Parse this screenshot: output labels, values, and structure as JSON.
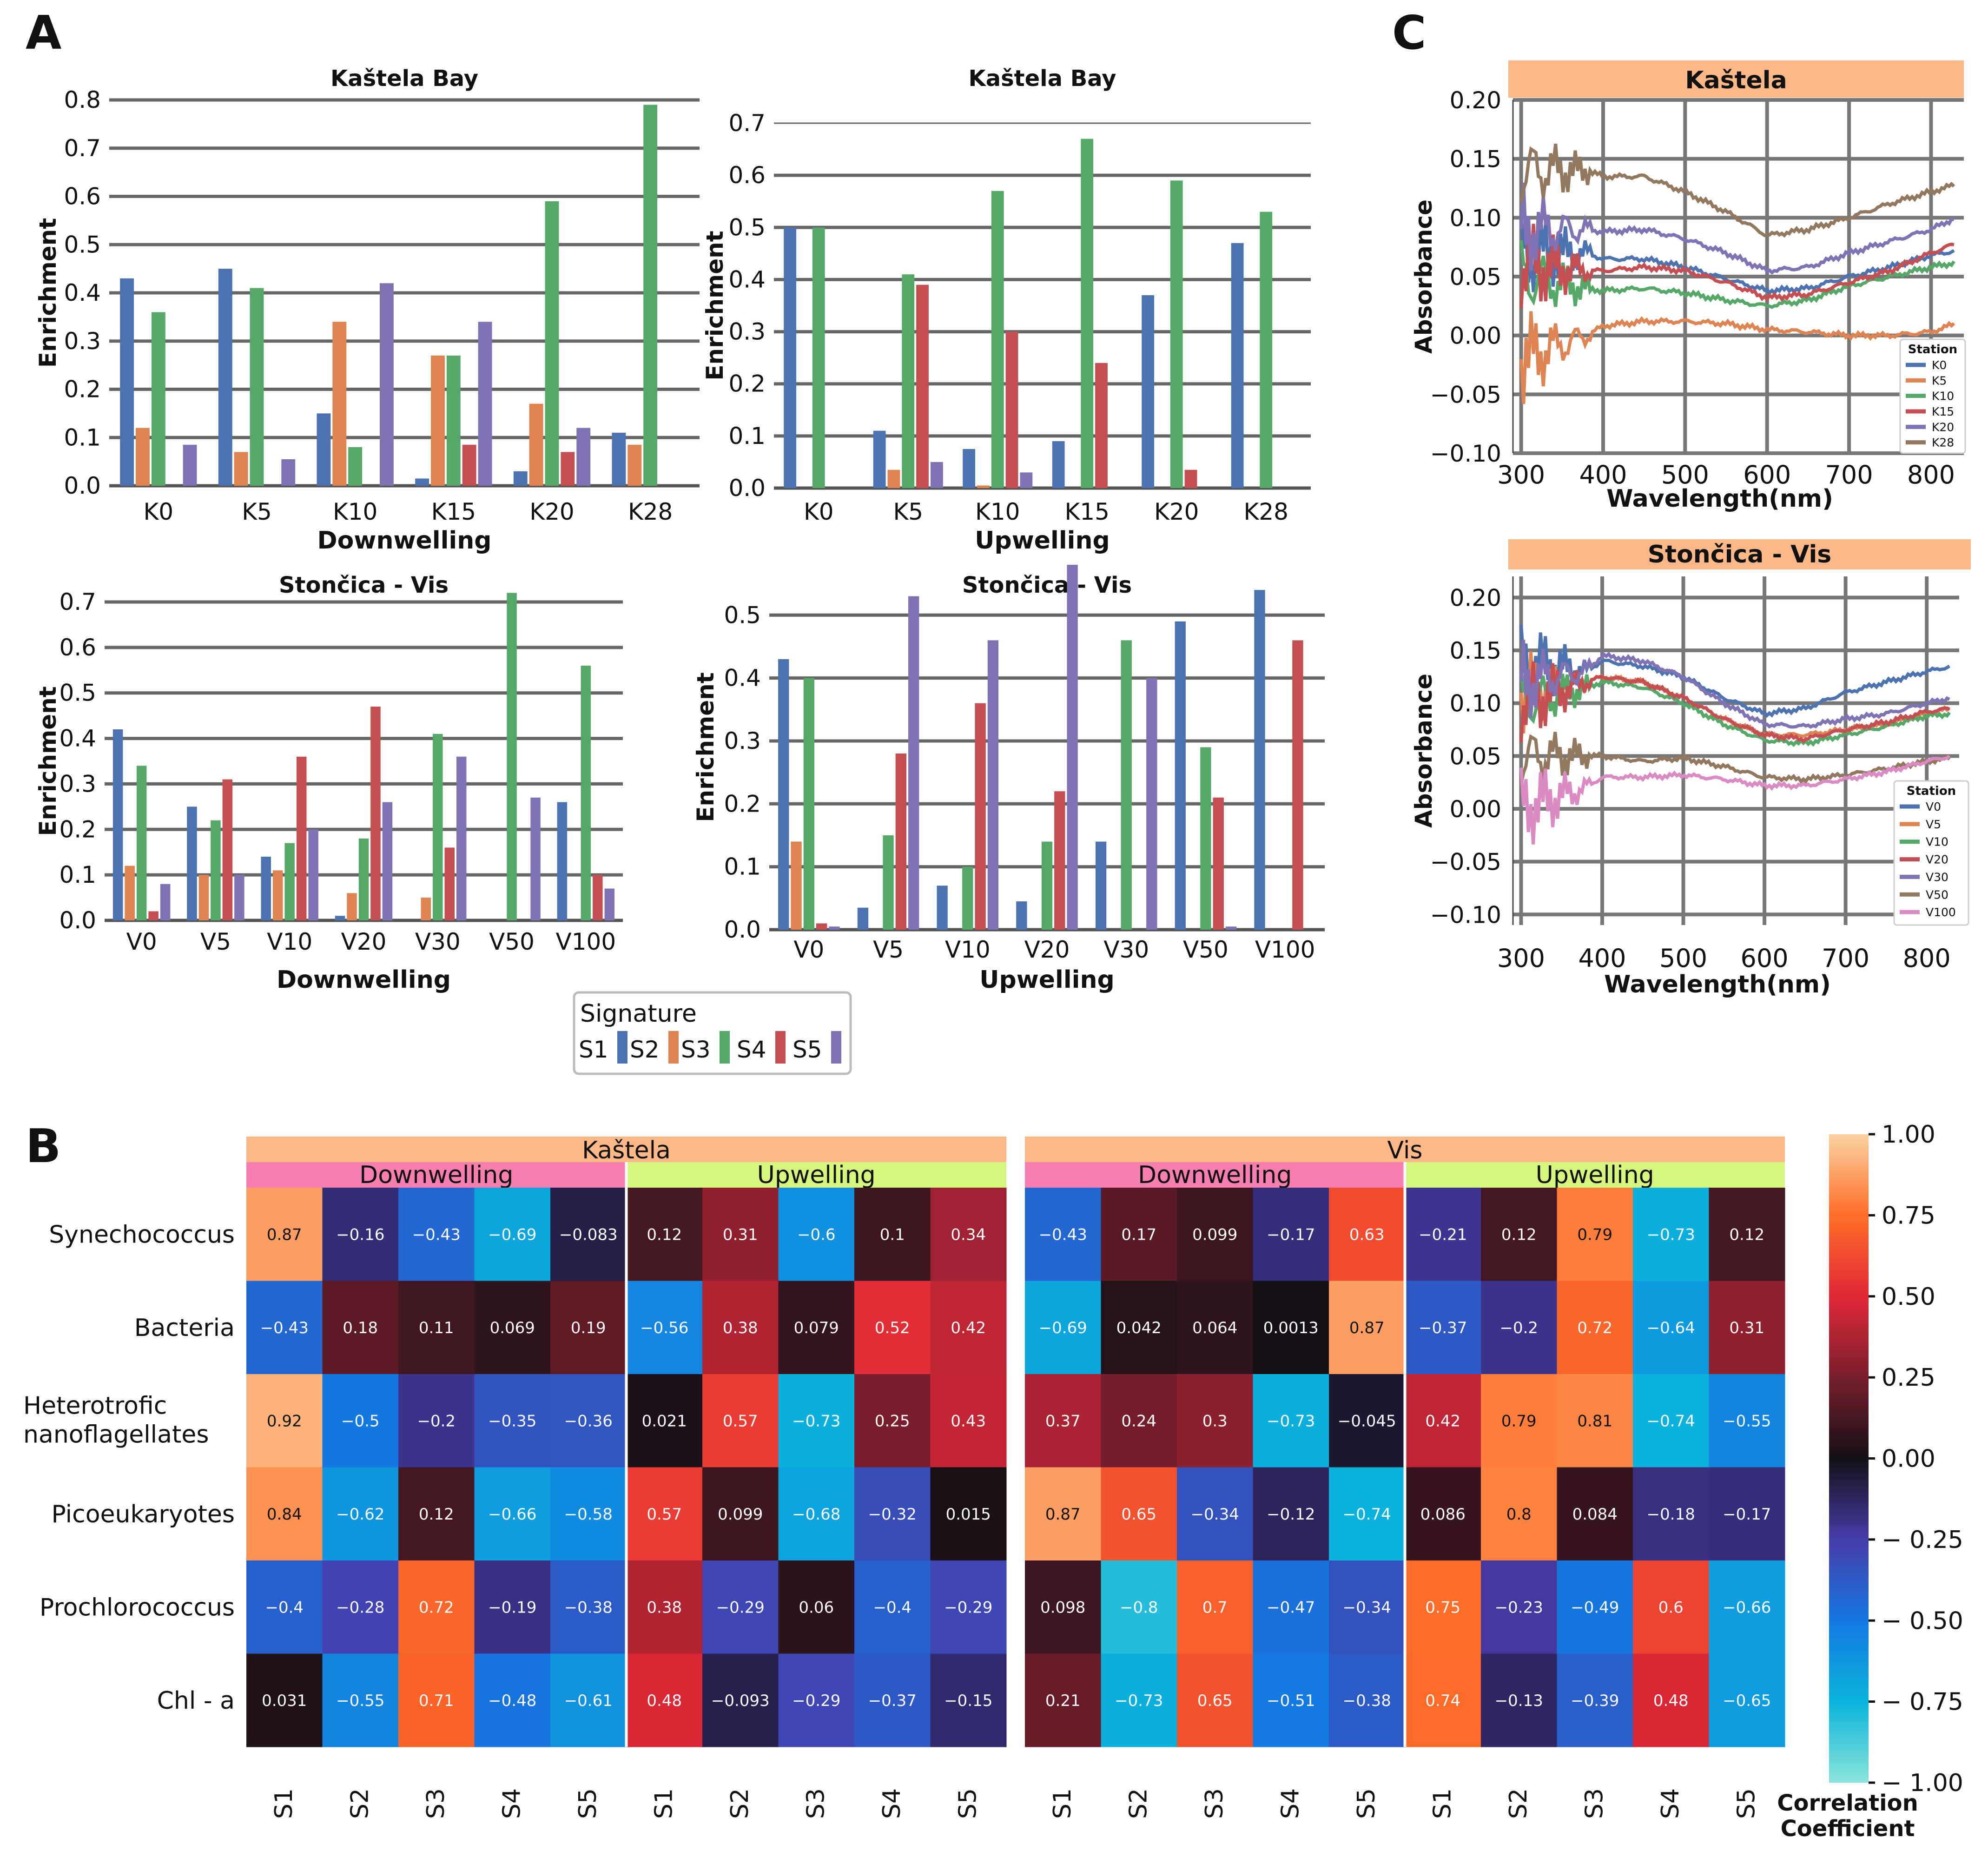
{
  "panel_labels": {
    "a": "A",
    "b": "B",
    "c": "C"
  },
  "signature_legend": {
    "title": "Signature",
    "items": [
      {
        "label": "S1",
        "color": "#4c72b0"
      },
      {
        "label": "S2",
        "color": "#dd8452"
      },
      {
        "label": "S3",
        "color": "#55a868"
      },
      {
        "label": "S4",
        "color": "#c44e52"
      },
      {
        "label": "S5",
        "color": "#8172b3"
      }
    ]
  },
  "chart_data": [
    {
      "type": "bar",
      "panel": "A",
      "title": "Kaštela Bay",
      "xlabel": "Downwelling",
      "ylabel": "Enrichment",
      "ylim": [
        0,
        0.8
      ],
      "yticks": [
        "0.0",
        "0.1",
        "0.2",
        "0.3",
        "0.4",
        "0.5",
        "0.6",
        "0.7",
        "0.8"
      ],
      "categories": [
        "K0",
        "K5",
        "K10",
        "K15",
        "K20",
        "K28"
      ],
      "series": [
        {
          "name": "S1",
          "values": [
            0.43,
            0.45,
            0.15,
            0.015,
            0.03,
            0.11
          ]
        },
        {
          "name": "S2",
          "values": [
            0.12,
            0.07,
            0.34,
            0.27,
            0.17,
            0.085
          ]
        },
        {
          "name": "S3",
          "values": [
            0.36,
            0.41,
            0.08,
            0.27,
            0.59,
            0.79
          ]
        },
        {
          "name": "S4",
          "values": [
            0,
            0,
            0,
            0.085,
            0.07,
            0
          ]
        },
        {
          "name": "S5",
          "values": [
            0.085,
            0.055,
            0.42,
            0.34,
            0.12,
            0
          ]
        }
      ]
    },
    {
      "type": "bar",
      "panel": "A",
      "title": "Kaštela Bay",
      "xlabel": "Upwelling",
      "ylabel": "Enrichment",
      "ylim": [
        0,
        0.7
      ],
      "yticks": [
        "0.0",
        "0.1",
        "0.2",
        "0.3",
        "0.4",
        "0.5",
        "0.6",
        "0.7"
      ],
      "categories": [
        "K0",
        "K5",
        "K10",
        "K15",
        "K20",
        "K28"
      ],
      "series": [
        {
          "name": "S1",
          "values": [
            0.5,
            0.11,
            0.075,
            0.09,
            0.37,
            0.47
          ]
        },
        {
          "name": "S2",
          "values": [
            0,
            0.035,
            0.005,
            0,
            0,
            0
          ]
        },
        {
          "name": "S3",
          "values": [
            0.5,
            0.41,
            0.57,
            0.67,
            0.59,
            0.53
          ]
        },
        {
          "name": "S4",
          "values": [
            0,
            0.39,
            0.3,
            0.24,
            0.035,
            0
          ]
        },
        {
          "name": "S5",
          "values": [
            0,
            0.05,
            0.03,
            0,
            0,
            0
          ]
        }
      ]
    },
    {
      "type": "bar",
      "panel": "A",
      "title": "Stončica - Vis",
      "xlabel": "Downwelling",
      "ylabel": "Enrichment",
      "ylim": [
        0,
        0.7
      ],
      "yticks": [
        "0.0",
        "0.1",
        "0.2",
        "0.3",
        "0.4",
        "0.5",
        "0.6",
        "0.7"
      ],
      "categories": [
        "V0",
        "V5",
        "V10",
        "V20",
        "V30",
        "V50",
        "V100"
      ],
      "series": [
        {
          "name": "S1",
          "values": [
            0.42,
            0.25,
            0.14,
            0.01,
            0,
            0,
            0.26
          ]
        },
        {
          "name": "S2",
          "values": [
            0.12,
            0.1,
            0.11,
            0.06,
            0.05,
            0,
            0
          ]
        },
        {
          "name": "S3",
          "values": [
            0.34,
            0.22,
            0.17,
            0.18,
            0.41,
            0.72,
            0.56
          ]
        },
        {
          "name": "S4",
          "values": [
            0.02,
            0.31,
            0.36,
            0.47,
            0.16,
            0,
            0.1
          ]
        },
        {
          "name": "S5",
          "values": [
            0.08,
            0.1,
            0.2,
            0.26,
            0.36,
            0.27,
            0.07
          ]
        }
      ]
    },
    {
      "type": "bar",
      "panel": "A",
      "title": "Stončica - Vis",
      "xlabel": "Upwelling",
      "ylabel": "Enrichment",
      "ylim": [
        0,
        0.58
      ],
      "yticks": [
        "0.0",
        "0.1",
        "0.2",
        "0.3",
        "0.4",
        "0.5"
      ],
      "categories": [
        "V0",
        "V5",
        "V10",
        "V20",
        "V30",
        "V50",
        "V100"
      ],
      "series": [
        {
          "name": "S1",
          "values": [
            0.43,
            0.035,
            0.07,
            0.045,
            0.14,
            0.49,
            0.54
          ]
        },
        {
          "name": "S2",
          "values": [
            0.14,
            0,
            0,
            0,
            0,
            0,
            0
          ]
        },
        {
          "name": "S3",
          "values": [
            0.4,
            0.15,
            0.1,
            0.14,
            0.46,
            0.29,
            0
          ]
        },
        {
          "name": "S4",
          "values": [
            0.01,
            0.28,
            0.36,
            0.22,
            0,
            0.21,
            0.46
          ]
        },
        {
          "name": "S5",
          "values": [
            0.005,
            0.53,
            0.46,
            0.58,
            0.4,
            0.005,
            0
          ]
        }
      ]
    },
    {
      "type": "line",
      "panel": "C",
      "title": "Kaštela",
      "xlabel": "Wavelength(nm)",
      "ylabel": "Absorbance",
      "xlim": [
        290,
        840
      ],
      "ylim": [
        -0.1,
        0.2
      ],
      "xticks": [
        "300",
        "400",
        "500",
        "600",
        "700",
        "800"
      ],
      "yticks": [
        "−0.10",
        "−0.05",
        "0.00",
        "0.05",
        "0.10",
        "0.15",
        "0.20"
      ],
      "legend_title": "Station",
      "legend_position": "bottom-right",
      "series": [
        {
          "name": "K0",
          "color": "#4c72b0",
          "x": [
            300,
            380,
            400,
            450,
            500,
            550,
            600,
            650,
            700,
            750,
            800,
            830
          ],
          "y": [
            0.07,
            0.07,
            0.065,
            0.065,
            0.058,
            0.048,
            0.038,
            0.04,
            0.05,
            0.058,
            0.068,
            0.072
          ]
        },
        {
          "name": "K5",
          "color": "#dd8452",
          "x": [
            300,
            380,
            400,
            450,
            500,
            550,
            600,
            650,
            700,
            750,
            800,
            830
          ],
          "y": [
            -0.02,
            0.0,
            0.008,
            0.012,
            0.012,
            0.01,
            0.005,
            0.003,
            0.0,
            0.0,
            0.003,
            0.01
          ]
        },
        {
          "name": "K10",
          "color": "#55a868",
          "x": [
            300,
            380,
            400,
            450,
            500,
            550,
            600,
            650,
            700,
            750,
            800,
            830
          ],
          "y": [
            0.05,
            0.04,
            0.038,
            0.04,
            0.036,
            0.03,
            0.025,
            0.03,
            0.042,
            0.05,
            0.058,
            0.062
          ]
        },
        {
          "name": "K15",
          "color": "#c44e52",
          "x": [
            300,
            380,
            400,
            450,
            500,
            550,
            600,
            650,
            700,
            750,
            800,
            830
          ],
          "y": [
            0.06,
            0.055,
            0.055,
            0.058,
            0.055,
            0.045,
            0.032,
            0.035,
            0.045,
            0.055,
            0.07,
            0.078
          ]
        },
        {
          "name": "K20",
          "color": "#8172b3",
          "x": [
            300,
            380,
            400,
            450,
            500,
            550,
            600,
            650,
            700,
            750,
            800,
            830
          ],
          "y": [
            0.09,
            0.09,
            0.088,
            0.09,
            0.082,
            0.07,
            0.055,
            0.058,
            0.07,
            0.08,
            0.09,
            0.1
          ]
        },
        {
          "name": "K28",
          "color": "#937860",
          "x": [
            300,
            380,
            400,
            450,
            500,
            550,
            600,
            650,
            700,
            750,
            800,
            830
          ],
          "y": [
            0.14,
            0.14,
            0.135,
            0.135,
            0.122,
            0.105,
            0.085,
            0.09,
            0.1,
            0.112,
            0.122,
            0.128
          ]
        }
      ]
    },
    {
      "type": "line",
      "panel": "C",
      "title": "Stončica - Vis",
      "xlabel": "Wavelength(nm)",
      "ylabel": "Absorbance",
      "xlim": [
        290,
        840
      ],
      "ylim": [
        -0.11,
        0.22
      ],
      "xticks": [
        "300",
        "400",
        "500",
        "600",
        "700",
        "800"
      ],
      "yticks": [
        "−0.10",
        "−0.05",
        "0.00",
        "0.05",
        "0.10",
        "0.15",
        "0.20"
      ],
      "legend_title": "Station",
      "legend_position": "bottom-right",
      "series": [
        {
          "name": "V0",
          "color": "#4c72b0",
          "x": [
            300,
            380,
            400,
            450,
            500,
            550,
            600,
            650,
            700,
            750,
            800,
            830
          ],
          "y": [
            0.14,
            0.13,
            0.14,
            0.135,
            0.125,
            0.105,
            0.09,
            0.095,
            0.11,
            0.12,
            0.13,
            0.135
          ]
        },
        {
          "name": "V5",
          "color": "#dd8452",
          "x": [
            300,
            380,
            400,
            450,
            500,
            550,
            600,
            650,
            700,
            750,
            800,
            830
          ],
          "y": [
            0.11,
            0.12,
            0.125,
            0.12,
            0.105,
            0.085,
            0.07,
            0.07,
            0.075,
            0.08,
            0.09,
            0.095
          ]
        },
        {
          "name": "V10",
          "color": "#55a868",
          "x": [
            300,
            380,
            400,
            450,
            500,
            550,
            600,
            650,
            700,
            750,
            800,
            830
          ],
          "y": [
            0.1,
            0.115,
            0.12,
            0.115,
            0.1,
            0.08,
            0.065,
            0.062,
            0.07,
            0.078,
            0.088,
            0.09
          ]
        },
        {
          "name": "V20",
          "color": "#c44e52",
          "x": [
            300,
            380,
            400,
            450,
            500,
            550,
            600,
            650,
            700,
            750,
            800,
            830
          ],
          "y": [
            0.1,
            0.12,
            0.125,
            0.12,
            0.105,
            0.085,
            0.07,
            0.066,
            0.075,
            0.082,
            0.092,
            0.095
          ]
        },
        {
          "name": "V30",
          "color": "#8172b3",
          "x": [
            300,
            380,
            400,
            450,
            500,
            550,
            600,
            650,
            700,
            750,
            800,
            830
          ],
          "y": [
            0.12,
            0.13,
            0.145,
            0.14,
            0.125,
            0.1,
            0.08,
            0.078,
            0.085,
            0.09,
            0.1,
            0.105
          ]
        },
        {
          "name": "V50",
          "color": "#937860",
          "x": [
            300,
            380,
            400,
            450,
            500,
            550,
            600,
            650,
            700,
            750,
            800,
            830
          ],
          "y": [
            0.05,
            0.05,
            0.05,
            0.045,
            0.048,
            0.04,
            0.03,
            0.028,
            0.032,
            0.038,
            0.045,
            0.048
          ]
        },
        {
          "name": "V100",
          "color": "#da8bc3",
          "x": [
            300,
            380,
            400,
            450,
            500,
            550,
            600,
            650,
            700,
            750,
            800,
            830
          ],
          "y": [
            0.0,
            0.02,
            0.03,
            0.03,
            0.032,
            0.028,
            0.022,
            0.022,
            0.028,
            0.035,
            0.045,
            0.05
          ]
        }
      ]
    },
    {
      "type": "heatmap",
      "panel": "B",
      "region_labels": [
        "Kaštela",
        "Vis"
      ],
      "condition_labels": [
        "Downwelling",
        "Upwelling",
        "Downwelling",
        "Upwelling"
      ],
      "rows": [
        "Synechococcus",
        "Bacteria",
        "Heterotrofic\nnanoflagellates",
        "Picoeukaryotes",
        "Prochlorococcus",
        "Chl - a"
      ],
      "columns": [
        "S1",
        "S2",
        "S3",
        "S4",
        "S5",
        "S1",
        "S2",
        "S3",
        "S4",
        "S5",
        "S1",
        "S2",
        "S3",
        "S4",
        "S5",
        "S1",
        "S2",
        "S3",
        "S4",
        "S5"
      ],
      "values": [
        [
          "0.87",
          "-0.16",
          "-0.43",
          "-0.69",
          "-0.083",
          "0.12",
          "0.31",
          "-0.6",
          "0.1",
          "0.34",
          "-0.43",
          "0.17",
          "0.099",
          "-0.17",
          "0.63",
          "-0.21",
          "0.12",
          "0.79",
          "-0.73",
          "0.12"
        ],
        [
          "-0.43",
          "0.18",
          "0.11",
          "0.069",
          "0.19",
          "-0.56",
          "0.38",
          "0.079",
          "0.52",
          "0.42",
          "-0.69",
          "0.042",
          "0.064",
          "0.0013",
          "0.87",
          "-0.37",
          "-0.2",
          "0.72",
          "-0.64",
          "0.31"
        ],
        [
          "0.92",
          "-0.5",
          "-0.2",
          "-0.35",
          "-0.36",
          "0.021",
          "0.57",
          "-0.73",
          "0.25",
          "0.43",
          "0.37",
          "0.24",
          "0.3",
          "-0.73",
          "-0.045",
          "0.42",
          "0.79",
          "0.81",
          "-0.74",
          "-0.55"
        ],
        [
          "0.84",
          "-0.62",
          "0.12",
          "-0.66",
          "-0.58",
          "0.57",
          "0.099",
          "-0.68",
          "-0.32",
          "0.015",
          "0.87",
          "0.65",
          "-0.34",
          "-0.12",
          "-0.74",
          "0.086",
          "0.8",
          "0.084",
          "-0.18",
          "-0.17"
        ],
        [
          "-0.4",
          "-0.28",
          "0.72",
          "-0.19",
          "-0.38",
          "0.38",
          "-0.29",
          "0.06",
          "-0.4",
          "-0.29",
          "0.098",
          "-0.8",
          "0.7",
          "-0.47",
          "-0.34",
          "0.75",
          "-0.23",
          "-0.49",
          "0.6",
          "-0.66"
        ],
        [
          "0.031",
          "-0.55",
          "0.71",
          "-0.48",
          "-0.61",
          "0.48",
          "-0.093",
          "-0.29",
          "-0.37",
          "-0.15",
          "0.21",
          "-0.73",
          "0.65",
          "-0.51",
          "-0.38",
          "0.74",
          "-0.13",
          "-0.39",
          "0.48",
          "-0.65"
        ]
      ],
      "colorbar": {
        "range": [
          -1,
          1
        ],
        "ticks": [
          "1.00",
          "0.75",
          "0.50",
          "0.25",
          "0.00",
          "− 0.25",
          "− 0.50",
          "− 0.75",
          "− 1.00"
        ],
        "label_line1": "Correlation",
        "label_line2": "Coefficient"
      }
    }
  ]
}
